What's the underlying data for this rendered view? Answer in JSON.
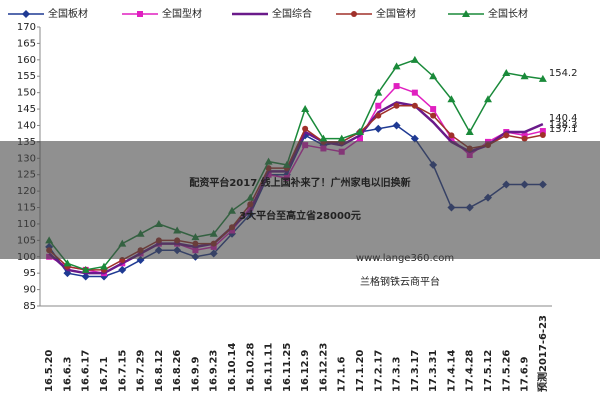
{
  "chart_data": {
    "type": "line",
    "categories": [
      "16.5.20",
      "16.6.3",
      "16.6.17",
      "16.7.1",
      "16.7.15",
      "16.7.29",
      "16.8.12",
      "16.8.26",
      "16.9.9",
      "16.9.23",
      "16.10.14",
      "16.10.28",
      "16.11.11",
      "16.11.25",
      "16.12.9",
      "16.12.23",
      "17.1.6",
      "17.1.20",
      "17.2.17",
      "17.3.3",
      "17.3.17",
      "17.3.31",
      "17.4.14",
      "17.4.28",
      "17.5.12",
      "17.5.26",
      "17.6.9",
      "预测2017-6-23"
    ],
    "series": [
      {
        "name": "全国板材",
        "color": "#1f3a93",
        "marker": "diamond",
        "values": [
          103,
          95,
          94,
          94,
          96,
          99,
          102,
          102,
          100,
          101,
          107,
          113,
          125,
          125,
          137,
          134,
          135,
          138,
          139,
          140,
          136,
          128,
          115,
          115,
          118,
          122,
          122,
          122
        ]
      },
      {
        "name": "全国型材",
        "color": "#e020c0",
        "marker": "square",
        "values": [
          100,
          97,
          96,
          95,
          98,
          101,
          104,
          104,
          102,
          103,
          108,
          115,
          125,
          124,
          134,
          133,
          132,
          136,
          146,
          152,
          150,
          145,
          136,
          131,
          135,
          138,
          137,
          138.3
        ],
        "value_labels": [
          null,
          null,
          null,
          null,
          null,
          null,
          null,
          null,
          null,
          null,
          null,
          null,
          null,
          null,
          null,
          null,
          null,
          null,
          null,
          null,
          null,
          null,
          null,
          null,
          null,
          null,
          null,
          "138.3"
        ]
      },
      {
        "name": "全国综合",
        "color": "#6a1a8a",
        "marker": "none",
        "values": [
          101,
          96,
          95,
          95,
          98,
          101,
          104,
          104,
          103,
          104,
          109,
          114,
          126,
          126,
          138,
          135,
          134,
          137,
          144,
          147,
          146,
          141,
          135,
          132,
          134,
          138,
          138,
          140.4
        ],
        "value_labels": [
          null,
          null,
          null,
          null,
          null,
          null,
          null,
          null,
          null,
          null,
          null,
          null,
          null,
          null,
          null,
          null,
          null,
          null,
          null,
          null,
          null,
          null,
          null,
          null,
          null,
          null,
          null,
          "140.4"
        ]
      },
      {
        "name": "全国管材",
        "color": "#a0302a",
        "marker": "circle",
        "values": [
          102,
          97,
          96,
          96,
          99,
          102,
          105,
          105,
          104,
          104,
          109,
          116,
          127,
          127,
          139,
          135,
          135,
          138,
          143,
          146,
          146,
          143,
          137,
          133,
          134,
          137,
          136,
          137.1
        ],
        "value_labels": [
          null,
          null,
          null,
          null,
          null,
          null,
          null,
          null,
          null,
          null,
          null,
          null,
          null,
          null,
          null,
          null,
          null,
          null,
          null,
          null,
          null,
          null,
          null,
          null,
          null,
          null,
          null,
          "137.1"
        ]
      },
      {
        "name": "全国长材",
        "color": "#1a8a3a",
        "marker": "triangle",
        "values": [
          105,
          98,
          96,
          97,
          104,
          107,
          110,
          108,
          106,
          107,
          114,
          118,
          129,
          128,
          145,
          136,
          136,
          138,
          150,
          158,
          160,
          155,
          148,
          138,
          148,
          156,
          155,
          154.2
        ],
        "value_labels": [
          null,
          null,
          null,
          null,
          null,
          null,
          null,
          null,
          null,
          null,
          null,
          null,
          null,
          null,
          null,
          null,
          null,
          null,
          null,
          null,
          null,
          null,
          null,
          null,
          null,
          null,
          null,
          "154.2"
        ]
      }
    ],
    "ylim": [
      85,
      170
    ],
    "yticks": [
      85,
      90,
      95,
      100,
      105,
      110,
      115,
      120,
      125,
      130,
      135,
      140,
      145,
      150,
      155,
      160,
      165,
      170
    ],
    "grid": false,
    "watermark": [
      "www.lange360.com",
      "兰格钢铁云商平台"
    ],
    "overlay_lines": [
      "配资平台2017 线上国补来了！广州家电以旧换新",
      "3大平台至高立省28000元"
    ]
  }
}
